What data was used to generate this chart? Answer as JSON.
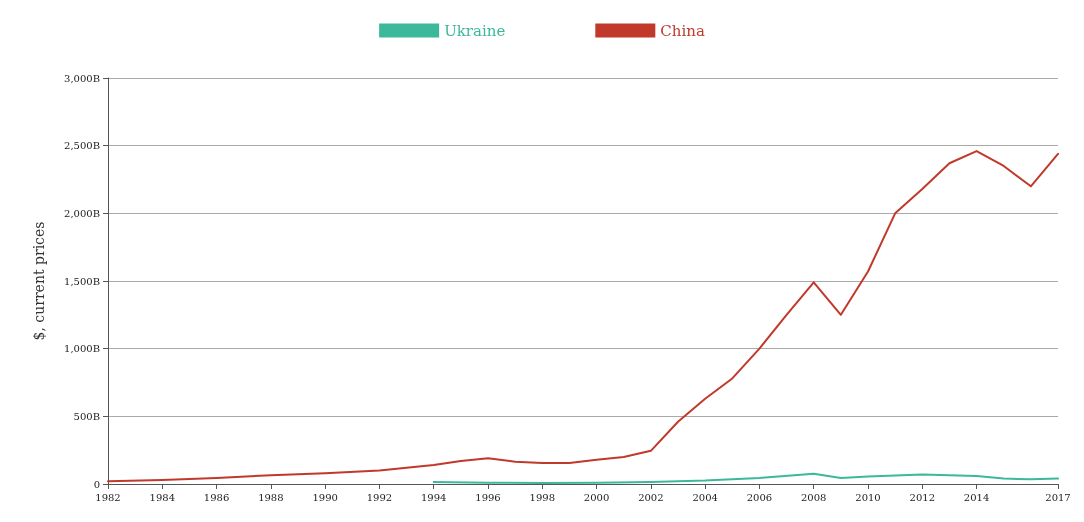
{
  "chart_data": {
    "type": "line",
    "ylabel": "$, current prices",
    "xlim": [
      1982,
      2017
    ],
    "xticks": [
      1982,
      1984,
      1986,
      1988,
      1990,
      1992,
      1994,
      1996,
      1998,
      2000,
      2002,
      2004,
      2006,
      2008,
      2010,
      2012,
      2014,
      2017
    ],
    "ylim": [
      0,
      3000
    ],
    "yticks": [
      {
        "value": 0,
        "label": "0"
      },
      {
        "value": 500,
        "label": "500B"
      },
      {
        "value": 1000,
        "label": "1,000B"
      },
      {
        "value": 1500,
        "label": "1,500B"
      },
      {
        "value": 2000,
        "label": "2,000B"
      },
      {
        "value": 2500,
        "label": "2,500B"
      },
      {
        "value": 3000,
        "label": "3,000B"
      }
    ],
    "grid": "y",
    "legend": "top",
    "marker": "none",
    "line_style": "solid",
    "series": [
      {
        "name": "Ukraine",
        "color": "#3cb89a",
        "x": [
          1994,
          1996,
          1998,
          2000,
          2002,
          2004,
          2006,
          2008,
          2009,
          2010,
          2012,
          2014,
          2015,
          2016,
          2017
        ],
        "values": [
          15,
          10,
          8,
          10,
          15,
          25,
          45,
          75,
          45,
          55,
          70,
          60,
          40,
          35,
          40
        ]
      },
      {
        "name": "China",
        "color": "#c0392b",
        "x": [
          1982,
          1984,
          1986,
          1988,
          1990,
          1992,
          1993,
          1994,
          1995,
          1996,
          1997,
          1998,
          1999,
          2000,
          2001,
          2002,
          2003,
          2004,
          2005,
          2006,
          2007,
          2008,
          2009,
          2010,
          2011,
          2012,
          2013,
          2014,
          2015,
          2016,
          2017
        ],
        "values": [
          20,
          30,
          45,
          65,
          80,
          100,
          120,
          140,
          170,
          190,
          165,
          155,
          155,
          180,
          200,
          245,
          460,
          630,
          780,
          1000,
          1250,
          1490,
          1250,
          1570,
          2000,
          2180,
          2370,
          2460,
          2350,
          2200,
          2440
        ]
      }
    ]
  }
}
